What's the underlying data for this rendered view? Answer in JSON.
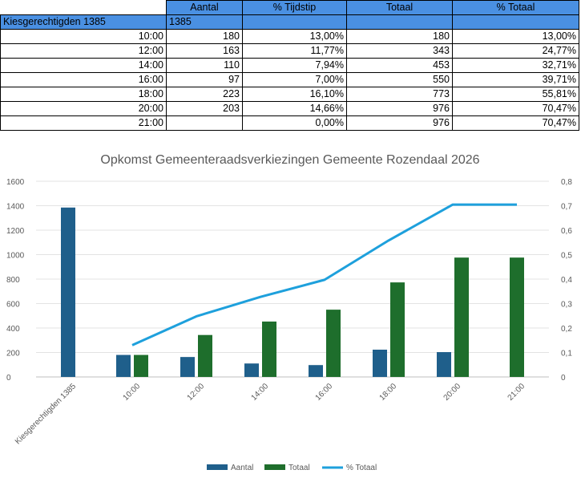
{
  "table": {
    "headers": [
      "",
      "Aantal",
      "% Tijdstip",
      "Totaal",
      "% Totaal"
    ],
    "sub_row": {
      "label": "Kiesgerechtigden 1385",
      "aantal": "1385"
    },
    "rows": [
      {
        "time": "10:00",
        "aantal": "180",
        "pct_tijdstip": "13,00%",
        "totaal": "180",
        "pct_totaal": "13,00%"
      },
      {
        "time": "12:00",
        "aantal": "163",
        "pct_tijdstip": "11,77%",
        "totaal": "343",
        "pct_totaal": "24,77%"
      },
      {
        "time": "14:00",
        "aantal": "110",
        "pct_tijdstip": "7,94%",
        "totaal": "453",
        "pct_totaal": "32,71%"
      },
      {
        "time": "16:00",
        "aantal": "97",
        "pct_tijdstip": "7,00%",
        "totaal": "550",
        "pct_totaal": "39,71%"
      },
      {
        "time": "18:00",
        "aantal": "223",
        "pct_tijdstip": "16,10%",
        "totaal": "773",
        "pct_totaal": "55,81%"
      },
      {
        "time": "20:00",
        "aantal": "203",
        "pct_tijdstip": "14,66%",
        "totaal": "976",
        "pct_totaal": "70,47%"
      },
      {
        "time": "21:00",
        "aantal": "",
        "pct_tijdstip": "0,00%",
        "totaal": "976",
        "pct_totaal": "70,47%"
      }
    ]
  },
  "chart_data": {
    "type": "bar",
    "title": "Opkomst Gemeenteraadsverkiezingen Gemeente Rozendaal 2026",
    "categories": [
      "Kiesgerechtigden 1385",
      "10:00",
      "12:00",
      "14:00",
      "16:00",
      "18:00",
      "20:00",
      "21:00"
    ],
    "series": [
      {
        "name": "Aantal",
        "type": "bar",
        "axis": "left",
        "color": "#1f5f8b",
        "values": [
          1385,
          180,
          163,
          110,
          97,
          223,
          203,
          null
        ]
      },
      {
        "name": "Totaal",
        "type": "bar",
        "axis": "left",
        "color": "#1e6e2c",
        "values": [
          null,
          180,
          343,
          453,
          550,
          773,
          976,
          976
        ]
      },
      {
        "name": "% Totaal",
        "type": "line",
        "axis": "right",
        "color": "#1ea0dc",
        "values": [
          null,
          0.13,
          0.2477,
          0.3271,
          0.3971,
          0.5581,
          0.7047,
          0.7047
        ]
      }
    ],
    "ylim": [
      0,
      1600
    ],
    "y_ticks": [
      "0",
      "200",
      "400",
      "600",
      "800",
      "1000",
      "1200",
      "1400",
      "1600"
    ],
    "y2lim": [
      0,
      0.8
    ],
    "y2_ticks": [
      "0",
      "0,1",
      "0,2",
      "0,3",
      "0,4",
      "0,5",
      "0,6",
      "0,7",
      "0,8"
    ],
    "grid": true,
    "legend": "bottom"
  }
}
